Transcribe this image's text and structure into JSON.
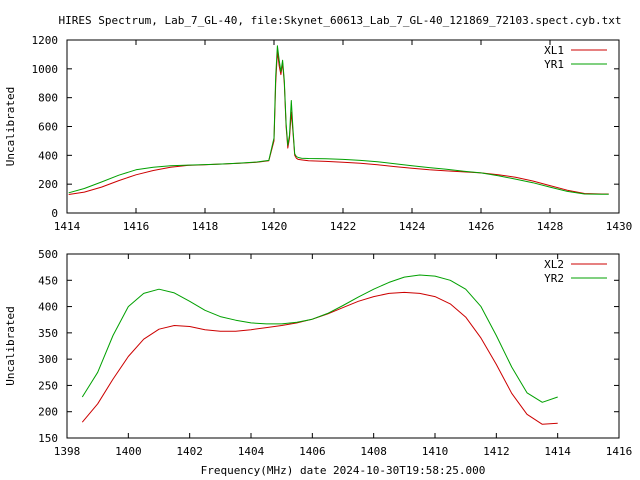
{
  "figure": {
    "title": "HIRES Spectrum, Lab_7_GL-40, file:Skynet_60613_Lab_7_GL-40_121869_72103.spect.cyb.txt",
    "colors": {
      "red": "#cc0000",
      "green": "#00a000",
      "axis": "#000000",
      "background": "#ffffff"
    }
  },
  "chart_data": [
    {
      "type": "line",
      "title": "HIRES Spectrum, Lab_7_GL-40, file:Skynet_60613_Lab_7_GL-40_121869_72103.spect.cyb.txt",
      "xlabel": "",
      "ylabel": "Uncalibrated",
      "xlim": [
        1414,
        1430
      ],
      "ylim": [
        0,
        1200
      ],
      "xticks": [
        1414,
        1416,
        1418,
        1420,
        1422,
        1424,
        1426,
        1428,
        1430
      ],
      "yticks": [
        0,
        200,
        400,
        600,
        800,
        1000,
        1200
      ],
      "grid": false,
      "legend": "top-right",
      "series": [
        {
          "name": "XL1",
          "color": "#cc0000",
          "x": [
            1414.05,
            1414.5,
            1415.0,
            1415.5,
            1416.0,
            1416.5,
            1417.0,
            1417.5,
            1418.0,
            1418.5,
            1419.0,
            1419.5,
            1419.85,
            1420.0,
            1420.05,
            1420.1,
            1420.15,
            1420.2,
            1420.25,
            1420.3,
            1420.35,
            1420.4,
            1420.45,
            1420.5,
            1420.55,
            1420.6,
            1420.65,
            1420.7,
            1420.8,
            1421.0,
            1421.5,
            1422.0,
            1422.5,
            1423.0,
            1423.5,
            1424.0,
            1424.5,
            1425.0,
            1425.5,
            1426.0,
            1426.5,
            1427.0,
            1427.5,
            1428.0,
            1428.5,
            1429.0,
            1429.5,
            1429.7
          ],
          "y": [
            128,
            145,
            180,
            225,
            265,
            295,
            318,
            330,
            335,
            340,
            345,
            352,
            362,
            500,
            900,
            1120,
            1020,
            960,
            1040,
            900,
            600,
            450,
            520,
            700,
            560,
            400,
            380,
            372,
            368,
            362,
            358,
            352,
            345,
            335,
            322,
            310,
            300,
            292,
            285,
            278,
            266,
            248,
            222,
            190,
            158,
            135,
            132,
            132
          ]
        },
        {
          "name": "YR1",
          "color": "#00a000",
          "x": [
            1414.05,
            1414.5,
            1415.0,
            1415.5,
            1416.0,
            1416.5,
            1417.0,
            1417.5,
            1418.0,
            1418.5,
            1419.0,
            1419.5,
            1419.85,
            1420.0,
            1420.05,
            1420.1,
            1420.15,
            1420.2,
            1420.25,
            1420.3,
            1420.35,
            1420.4,
            1420.45,
            1420.5,
            1420.55,
            1420.6,
            1420.65,
            1420.7,
            1420.8,
            1421.0,
            1421.5,
            1422.0,
            1422.5,
            1423.0,
            1423.5,
            1424.0,
            1424.5,
            1425.0,
            1425.5,
            1426.0,
            1426.5,
            1427.0,
            1427.5,
            1428.0,
            1428.5,
            1429.0,
            1429.5,
            1429.7
          ],
          "y": [
            140,
            170,
            215,
            262,
            300,
            318,
            328,
            332,
            336,
            340,
            346,
            354,
            365,
            520,
            950,
            1160,
            1060,
            980,
            1060,
            920,
            620,
            470,
            540,
            780,
            580,
            410,
            392,
            385,
            380,
            378,
            376,
            372,
            365,
            355,
            342,
            328,
            315,
            303,
            290,
            278,
            258,
            235,
            210,
            180,
            150,
            132,
            130,
            130
          ]
        }
      ]
    },
    {
      "type": "line",
      "title": "",
      "xlabel": "Frequency(MHz) date 2024-10-30T19:58:25.000",
      "ylabel": "Uncalibrated",
      "xlim": [
        1398,
        1416
      ],
      "ylim": [
        150,
        500
      ],
      "xticks": [
        1398,
        1400,
        1402,
        1404,
        1406,
        1408,
        1410,
        1412,
        1414,
        1416
      ],
      "yticks": [
        150,
        200,
        250,
        300,
        350,
        400,
        450,
        500
      ],
      "grid": false,
      "legend": "top-right",
      "series": [
        {
          "name": "XL2",
          "color": "#cc0000",
          "x": [
            1398.5,
            1399.0,
            1399.5,
            1400.0,
            1400.5,
            1401.0,
            1401.5,
            1402.0,
            1402.5,
            1403.0,
            1403.5,
            1404.0,
            1404.5,
            1405.0,
            1405.5,
            1406.0,
            1406.5,
            1407.0,
            1407.5,
            1408.0,
            1408.5,
            1409.0,
            1409.5,
            1410.0,
            1410.5,
            1411.0,
            1411.5,
            1412.0,
            1412.5,
            1413.0,
            1413.5,
            1414.0
          ],
          "y": [
            180,
            215,
            262,
            305,
            338,
            357,
            364,
            362,
            356,
            353,
            353,
            356,
            360,
            364,
            369,
            376,
            386,
            398,
            410,
            419,
            425,
            427,
            425,
            419,
            405,
            380,
            340,
            290,
            235,
            195,
            176,
            178
          ]
        },
        {
          "name": "YR2",
          "color": "#00a000",
          "x": [
            1398.5,
            1399.0,
            1399.5,
            1400.0,
            1400.5,
            1401.0,
            1401.5,
            1402.0,
            1402.5,
            1403.0,
            1403.5,
            1404.0,
            1404.5,
            1405.0,
            1405.5,
            1406.0,
            1406.5,
            1407.0,
            1407.5,
            1408.0,
            1408.5,
            1409.0,
            1409.5,
            1410.0,
            1410.5,
            1411.0,
            1411.5,
            1412.0,
            1412.5,
            1413.0,
            1413.5,
            1414.0
          ],
          "y": [
            228,
            275,
            345,
            400,
            425,
            433,
            426,
            410,
            393,
            381,
            374,
            369,
            367,
            367,
            370,
            376,
            387,
            402,
            418,
            433,
            446,
            456,
            460,
            458,
            450,
            433,
            400,
            345,
            285,
            236,
            218,
            228
          ]
        }
      ]
    }
  ]
}
